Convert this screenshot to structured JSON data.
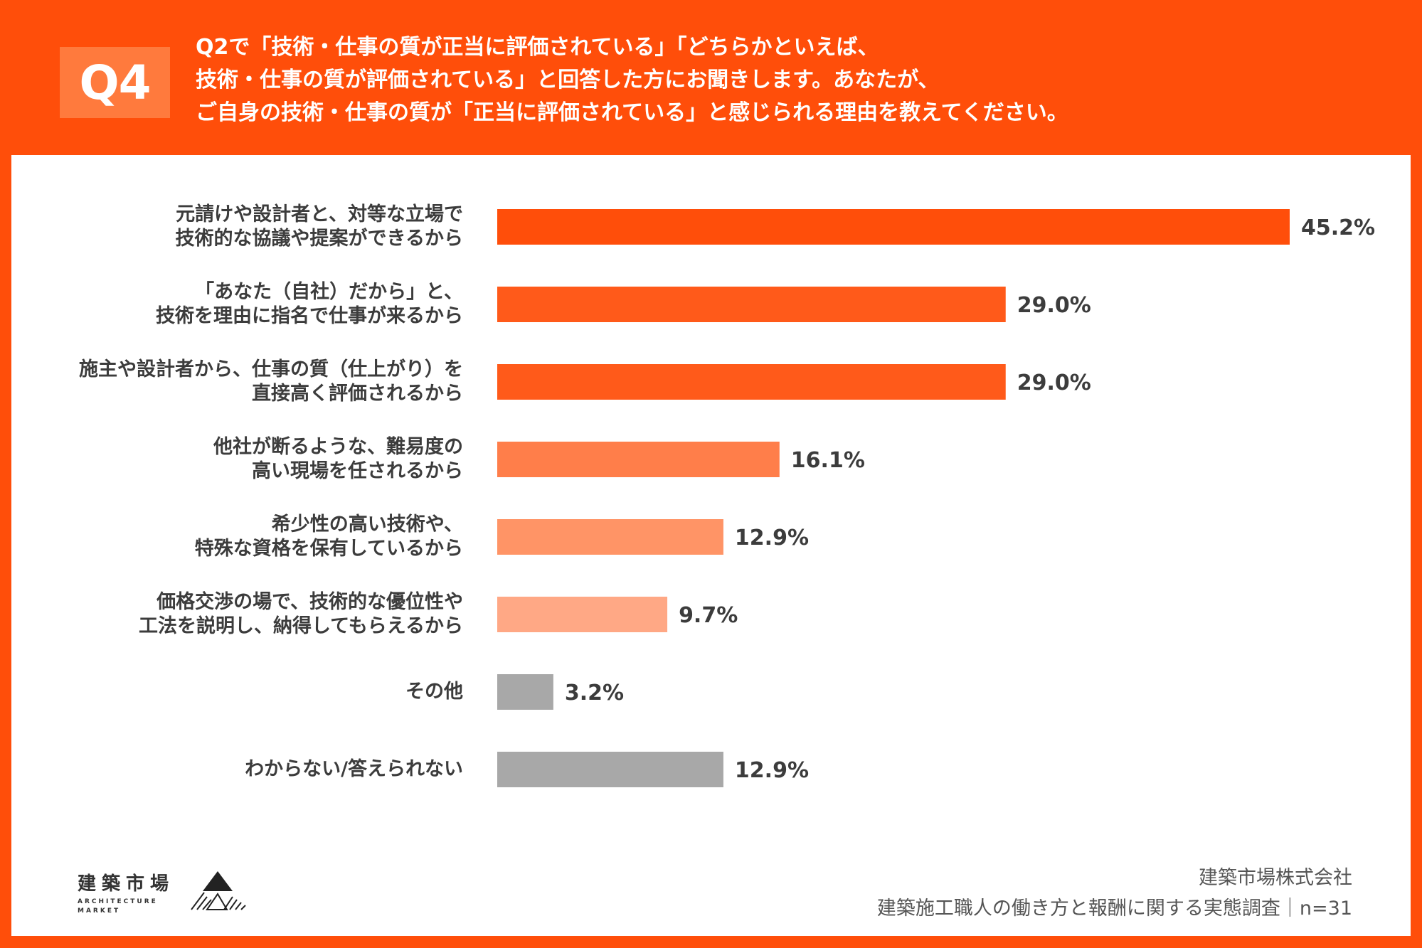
{
  "header": {
    "badge": "Q4",
    "question_lines": [
      "Q2で「技術・仕事の質が正当に評価されている」「どちらかといえば、",
      "技術・仕事の質が評価されている」と回答した方にお聞きします。あなたが、",
      "ご自身の技術・仕事の質が「正当に評価されている」と感じられる理由を教えてください。"
    ]
  },
  "chart_data": {
    "type": "bar",
    "orientation": "horizontal",
    "categories": [
      [
        "元請けや設計者と、対等な立場で",
        "技術的な協議や提案ができるから"
      ],
      [
        "「あなた（自社）だから」と、",
        "技術を理由に指名で仕事が来るから"
      ],
      [
        "施主や設計者から、仕事の質（仕上がり）を",
        "直接高く評価されるから"
      ],
      [
        "他社が断るような、難易度の",
        "高い現場を任されるから"
      ],
      [
        "希少性の高い技術や、",
        "特殊な資格を保有しているから"
      ],
      [
        "価格交渉の場で、技術的な優位性や",
        "工法を説明し、納得してもらえるから"
      ],
      [
        "その他"
      ],
      [
        "わからない/答えられない"
      ]
    ],
    "values": [
      45.2,
      29.0,
      29.0,
      16.1,
      12.9,
      9.7,
      3.2,
      12.9
    ],
    "value_labels": [
      "45.2%",
      "29.0%",
      "29.0%",
      "16.1%",
      "12.9%",
      "9.7%",
      "3.2%",
      "12.9%"
    ],
    "bar_colors": [
      "#FF4E0A",
      "#FF5A1A",
      "#FF5A1A",
      "#FF7E4A",
      "#FF9466",
      "#FFA885",
      "#A8A8A8",
      "#A8A8A8"
    ],
    "xlim": [
      0,
      45.2
    ],
    "grid": false,
    "legend": "none"
  },
  "footer": {
    "company": "建築市場株式会社",
    "survey": "建築施工職人の働き方と報酬に関する実態調査｜n=31"
  },
  "logo": {
    "name_jp": "建築市場",
    "name_en_lines": [
      "ARCHITECTURE",
      "MARKET"
    ]
  }
}
